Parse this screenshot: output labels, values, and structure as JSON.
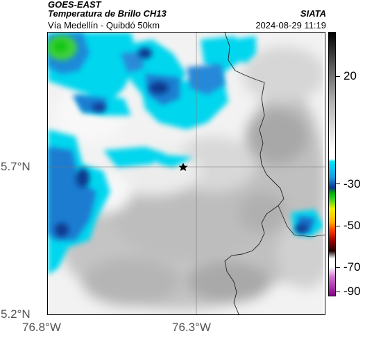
{
  "header": {
    "satellite": "GOES-EAST",
    "product": "Temperatura de Brillo CH13",
    "region": "Vía Medellín - Quibdó 50km",
    "organization": "SIATA",
    "datetime": "2024-08-29 11:19"
  },
  "axes": {
    "lat_labels": [
      "5.7°N",
      "5.2°N"
    ],
    "lon_labels": [
      "76.8°W",
      "76.3°W"
    ]
  },
  "colorbar": {
    "labels": [
      "20",
      "-30",
      "-50",
      "-70",
      "-90"
    ],
    "palette": [
      "#000000",
      "#666666",
      "#cccccc",
      "#ffffff",
      "#00e5ff",
      "#0090e0",
      "#0030a0",
      "#00c000",
      "#ffff00",
      "#ff6000",
      "#a00000",
      "#3a0000",
      "#ffffff",
      "#cc66cc",
      "#990099"
    ]
  },
  "map": {
    "marker": "star-icon"
  },
  "colors": {
    "cloud_cyan": "#00d8f0",
    "cloud_blue": "#2a8ad8",
    "cloud_dark": "#0a3a90",
    "green": "#22c822",
    "gray_dark": "#b2b2b2",
    "border": "#000000"
  }
}
